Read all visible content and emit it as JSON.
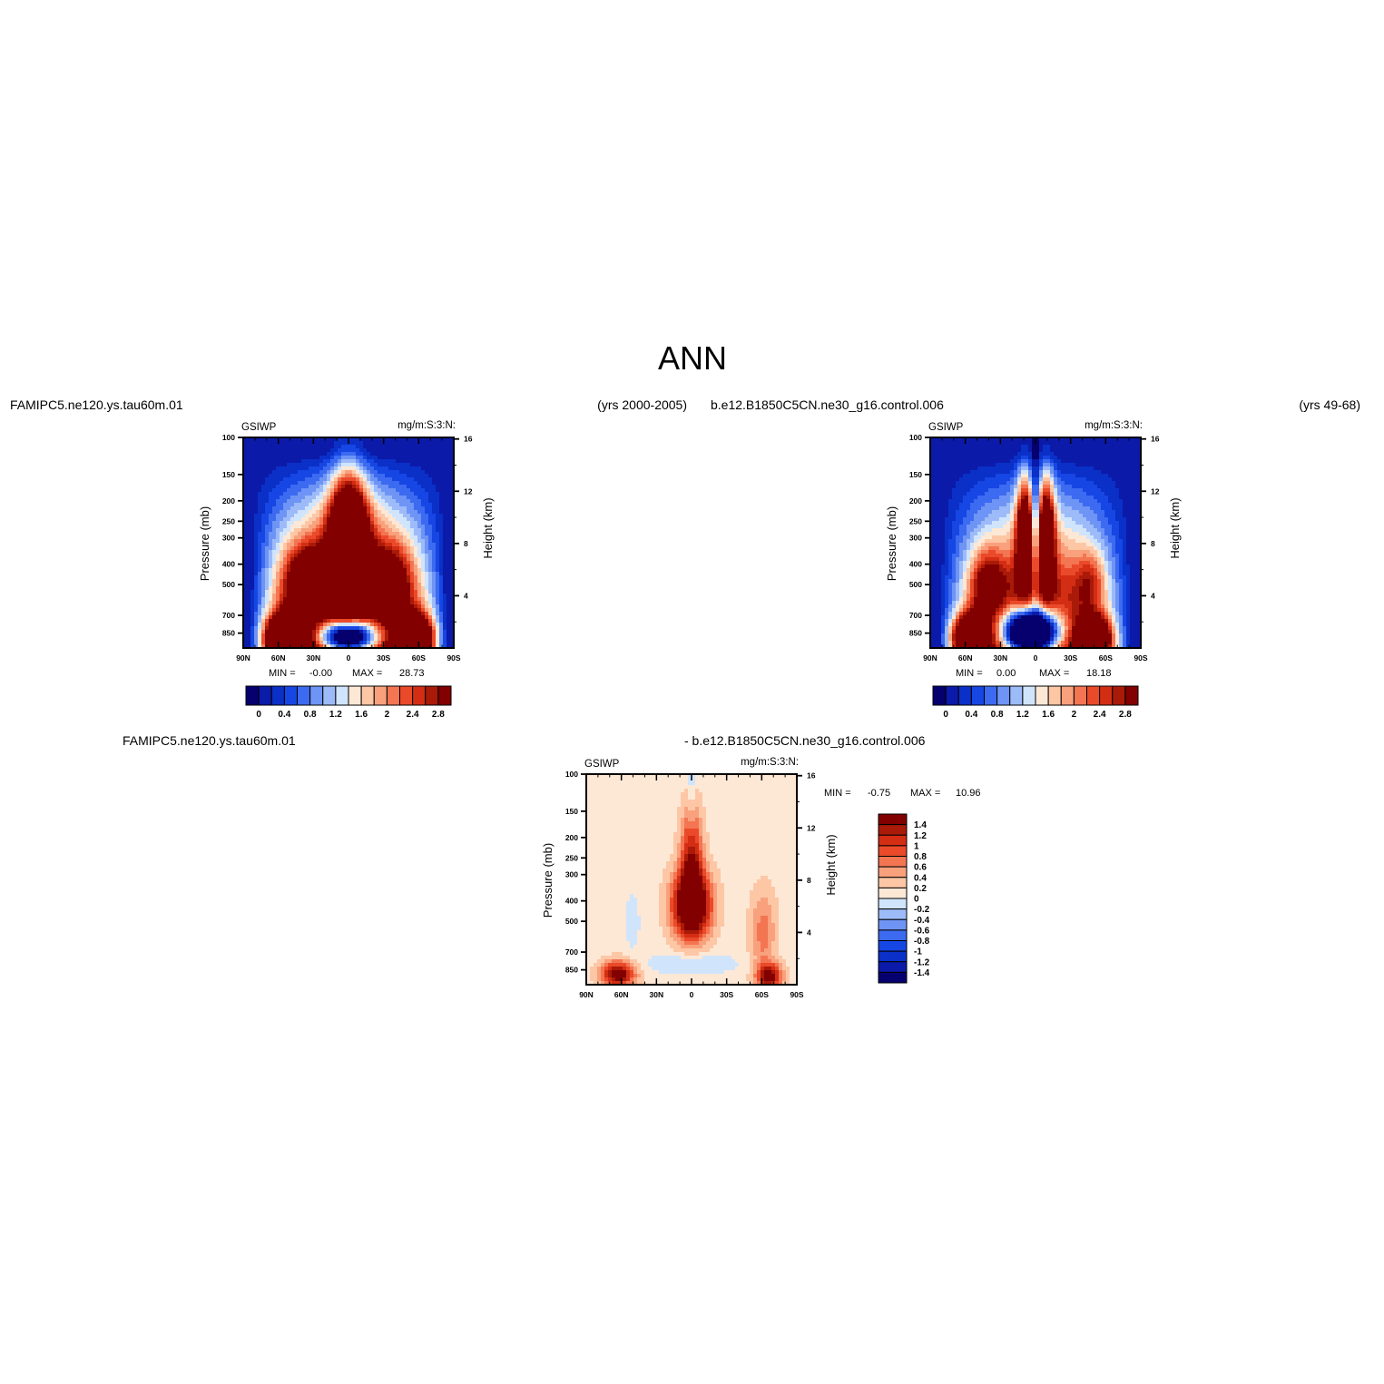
{
  "figure_title": "ANN",
  "chart_data": [
    {
      "type": "heatmap",
      "case_name": "FAMIPC5.ne120.ys.tau60m.01",
      "years": "(yrs 2000-2005)",
      "variable": "GSIWP",
      "units": "mg/m:S:3:N:",
      "xlabel": "",
      "ylabel": "Pressure (mb)",
      "ylabel_right": "Height (km)",
      "xticks": [
        "90N",
        "60N",
        "30N",
        "0",
        "30S",
        "60S",
        "90S"
      ],
      "x_values": [
        90,
        60,
        30,
        0,
        -30,
        -60,
        -90
      ],
      "yticks": [
        "100",
        "150",
        "200",
        "250",
        "300",
        "400",
        "500",
        "700",
        "850"
      ],
      "y_values": [
        100,
        150,
        200,
        250,
        300,
        400,
        500,
        700,
        850
      ],
      "yticks_right": [
        "16",
        "12",
        "8",
        "4"
      ],
      "y_values_right": [
        16,
        12,
        8,
        4
      ],
      "ylim": [
        100,
        1000
      ],
      "xlim": [
        90,
        -90
      ],
      "min_label": "MIN =",
      "min_value": "-0.00",
      "max_label": "MAX =",
      "max_value": "28.73",
      "colorbar": {
        "orientation": "horizontal",
        "labels": [
          "0",
          "0.4",
          "0.8",
          "1.2",
          "1.6",
          "2",
          "2.4",
          "2.8"
        ],
        "levels": [
          0,
          0.2,
          0.4,
          0.6,
          0.8,
          1.0,
          1.2,
          1.4,
          1.6,
          1.8,
          2.0,
          2.2,
          2.4,
          2.6,
          2.8
        ],
        "colors": [
          "#05006e",
          "#0b1aa8",
          "#0a30c8",
          "#1646e3",
          "#3c6af0",
          "#6e94f5",
          "#9dbbf9",
          "#d0e4fc",
          "#fde8d6",
          "#fdc7a6",
          "#f9a17c",
          "#f47552",
          "#ea4a2a",
          "#d32e14",
          "#aa1a08",
          "#820000"
        ]
      }
    },
    {
      "type": "heatmap",
      "case_name": "b.e12.B1850C5CN.ne30_g16.control.006",
      "years": "(yrs 49-68)",
      "variable": "GSIWP",
      "units": "mg/m:S:3:N:",
      "xlabel": "",
      "ylabel": "Pressure (mb)",
      "ylabel_right": "Height (km)",
      "xticks": [
        "90N",
        "60N",
        "30N",
        "0",
        "30S",
        "60S",
        "90S"
      ],
      "x_values": [
        90,
        60,
        30,
        0,
        -30,
        -60,
        -90
      ],
      "yticks": [
        "100",
        "150",
        "200",
        "250",
        "300",
        "400",
        "500",
        "700",
        "850"
      ],
      "y_values": [
        100,
        150,
        200,
        250,
        300,
        400,
        500,
        700,
        850
      ],
      "yticks_right": [
        "16",
        "12",
        "8",
        "4"
      ],
      "y_values_right": [
        16,
        12,
        8,
        4
      ],
      "ylim": [
        100,
        1000
      ],
      "xlim": [
        90,
        -90
      ],
      "min_label": "MIN =",
      "min_value": "0.00",
      "max_label": "MAX =",
      "max_value": "18.18",
      "colorbar": {
        "orientation": "horizontal",
        "labels": [
          "0",
          "0.4",
          "0.8",
          "1.2",
          "1.6",
          "2",
          "2.4",
          "2.8"
        ],
        "levels": [
          0,
          0.2,
          0.4,
          0.6,
          0.8,
          1.0,
          1.2,
          1.4,
          1.6,
          1.8,
          2.0,
          2.2,
          2.4,
          2.6,
          2.8
        ],
        "colors": [
          "#05006e",
          "#0b1aa8",
          "#0a30c8",
          "#1646e3",
          "#3c6af0",
          "#6e94f5",
          "#9dbbf9",
          "#d0e4fc",
          "#fde8d6",
          "#fdc7a6",
          "#f9a17c",
          "#f47552",
          "#ea4a2a",
          "#d32e14",
          "#aa1a08",
          "#820000"
        ]
      }
    },
    {
      "type": "heatmap",
      "case_name": "FAMIPC5.ne120.ys.tau60m.01",
      "case_name_2": "- b.e12.B1850C5CN.ne30_g16.control.006",
      "variable": "GSIWP",
      "units": "mg/m:S:3:N:",
      "xlabel": "",
      "ylabel": "Pressure (mb)",
      "ylabel_right": "Height (km)",
      "xticks": [
        "90N",
        "60N",
        "30N",
        "0",
        "30S",
        "60S",
        "90S"
      ],
      "x_values": [
        90,
        60,
        30,
        0,
        -30,
        -60,
        -90
      ],
      "yticks": [
        "100",
        "150",
        "200",
        "250",
        "300",
        "400",
        "500",
        "700",
        "850"
      ],
      "y_values": [
        100,
        150,
        200,
        250,
        300,
        400,
        500,
        700,
        850
      ],
      "yticks_right": [
        "16",
        "12",
        "8",
        "4"
      ],
      "y_values_right": [
        16,
        12,
        8,
        4
      ],
      "ylim": [
        100,
        1000
      ],
      "xlim": [
        90,
        -90
      ],
      "min_label": "MIN =",
      "min_value": "-0.75",
      "max_label": "MAX =",
      "max_value": "10.96",
      "colorbar": {
        "orientation": "vertical",
        "labels": [
          "1.4",
          "1.2",
          "1",
          "0.8",
          "0.6",
          "0.4",
          "0.2",
          "0",
          "-0.2",
          "-0.4",
          "-0.6",
          "-0.8",
          "-1",
          "-1.2",
          "-1.4"
        ],
        "levels": [
          1.4,
          1.2,
          1.0,
          0.8,
          0.6,
          0.4,
          0.2,
          0,
          -0.2,
          -0.4,
          -0.6,
          -0.8,
          -1.0,
          -1.2,
          -1.4
        ],
        "colors": [
          "#820000",
          "#aa1a08",
          "#d32e14",
          "#ea4a2a",
          "#f47552",
          "#f9a17c",
          "#fdc7a6",
          "#fde8d6",
          "#d0e4fc",
          "#9dbbf9",
          "#6e94f5",
          "#3c6af0",
          "#1646e3",
          "#0a30c8",
          "#0b1aa8",
          "#05006e"
        ]
      }
    }
  ]
}
